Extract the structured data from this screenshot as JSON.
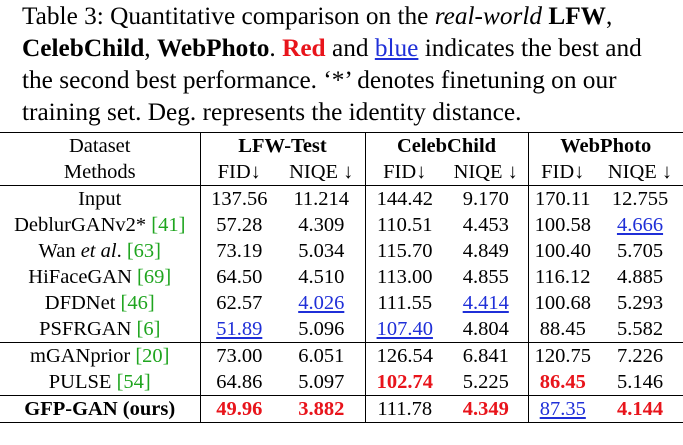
{
  "caption": {
    "p1": "Table 3: Quantitative comparison on the ",
    "p2": "real-world",
    "p3": " ",
    "p4": "LFW",
    "p5": ", ",
    "p6": "CelebChild",
    "p7": ", ",
    "p8": "WebPhoto",
    "p9": ". ",
    "p10": "Red",
    "p11": " and ",
    "p12": "blue",
    "p13": " indicates the best and the second best performance. ‘*’ denotes finetuning on our training set. Deg. represents the identity distance."
  },
  "table": {
    "header1": {
      "label": "Dataset",
      "groups": [
        "LFW-Test",
        "CelebChild",
        "WebPhoto"
      ]
    },
    "header2": {
      "label": "Methods",
      "cols": [
        "FID↓",
        "NIQE ↓",
        "FID↓",
        "NIQE ↓",
        "FID↓",
        "NIQE ↓"
      ]
    },
    "rows": [
      {
        "name": "Input",
        "values": [
          "137.56",
          "11.214",
          "144.42",
          "9.170",
          "170.11",
          "12.755"
        ]
      },
      {
        "name": "DeblurGANv2* ",
        "cite": "[41]",
        "values": [
          "57.28",
          "4.309",
          "110.51",
          "4.453",
          "100.58",
          "4.666"
        ]
      },
      {
        "name_pre": "Wan ",
        "name_it": "et al",
        "name_post": ". ",
        "cite": "[63]",
        "values": [
          "73.19",
          "5.034",
          "115.70",
          "4.849",
          "100.40",
          "5.705"
        ]
      },
      {
        "name": "HiFaceGAN ",
        "cite": "[69]",
        "values": [
          "64.50",
          "4.510",
          "113.00",
          "4.855",
          "116.12",
          "4.885"
        ]
      },
      {
        "name": "DFDNet ",
        "cite": "[46]",
        "values": [
          "62.57",
          "4.026",
          "111.55",
          "4.414",
          "100.68",
          "5.293"
        ]
      },
      {
        "name": "PSFRGAN ",
        "cite": "[6]",
        "values": [
          "51.89",
          "5.096",
          "107.40",
          "4.804",
          "88.45",
          "5.582"
        ]
      },
      {
        "name": "mGANprior ",
        "cite": "[20]",
        "values": [
          "73.00",
          "6.051",
          "126.54",
          "6.841",
          "120.75",
          "7.226"
        ]
      },
      {
        "name": "PULSE ",
        "cite": "[54]",
        "values": [
          "64.86",
          "5.097",
          "102.74",
          "5.225",
          "86.45",
          "5.146"
        ]
      },
      {
        "name": "GFP-GAN (ours)",
        "values": [
          "49.96",
          "3.882",
          "111.78",
          "4.349",
          "87.35",
          "4.144"
        ]
      }
    ]
  }
}
